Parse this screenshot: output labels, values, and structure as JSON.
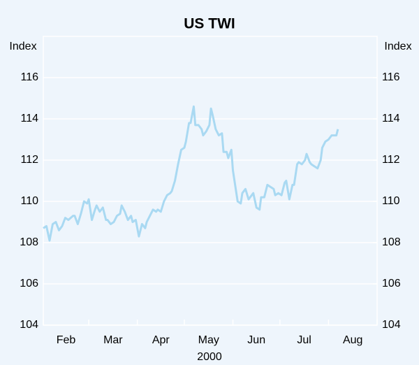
{
  "chart_data": {
    "type": "line",
    "title": "US TWI",
    "y_label": "Index",
    "y2_label": "Index",
    "x_label": "2000",
    "categories": [
      "Feb",
      "Mar",
      "Apr",
      "May",
      "Jun",
      "Jul",
      "Aug"
    ],
    "xlim": [
      0,
      213
    ],
    "xticks": [
      0,
      29,
      60,
      90,
      121,
      151,
      182,
      213
    ],
    "ylim": [
      104,
      118
    ],
    "yticks": [
      104,
      106,
      108,
      110,
      112,
      114,
      116
    ],
    "y2lim": [
      104,
      118
    ],
    "y2ticks": [
      104,
      106,
      108,
      110,
      112,
      114,
      116
    ],
    "grid": true,
    "series": [
      {
        "name": "US TWI",
        "color": "#a9d9f2",
        "x": [
          0,
          2,
          4,
          6,
          8,
          10,
          12,
          14,
          16,
          19,
          20,
          22,
          24,
          26,
          28,
          29,
          31,
          33,
          34,
          36,
          38,
          40,
          41,
          43,
          45,
          47,
          49,
          50,
          52,
          54,
          56,
          57,
          59,
          61,
          63,
          65,
          66,
          68,
          70,
          72,
          73,
          75,
          77,
          79,
          81,
          82,
          84,
          86,
          88,
          90,
          91,
          93,
          94,
          96,
          97,
          99,
          101,
          102,
          104,
          106,
          107,
          108,
          110,
          112,
          114,
          115,
          117,
          118,
          120,
          121,
          122,
          124,
          126,
          127,
          129,
          131,
          132,
          134,
          136,
          138,
          139,
          141,
          143,
          145,
          147,
          148,
          150,
          152,
          154,
          155,
          157,
          159,
          160,
          162,
          163,
          165,
          167,
          168,
          170,
          171,
          173,
          175,
          177,
          178,
          180,
          182,
          184,
          185,
          187,
          188
        ],
        "values": [
          108.7,
          108.8,
          108.1,
          108.9,
          109.0,
          108.6,
          108.8,
          109.2,
          109.1,
          109.3,
          109.3,
          108.9,
          109.4,
          110.0,
          109.9,
          110.1,
          109.1,
          109.6,
          109.8,
          109.5,
          109.7,
          109.1,
          109.1,
          108.9,
          109.0,
          109.3,
          109.4,
          109.8,
          109.5,
          109.1,
          109.3,
          109.0,
          109.1,
          108.3,
          108.9,
          108.7,
          109.0,
          109.3,
          109.6,
          109.5,
          109.6,
          109.5,
          110.0,
          110.3,
          110.4,
          110.5,
          111.0,
          111.8,
          112.5,
          112.6,
          112.9,
          113.8,
          113.8,
          114.6,
          113.7,
          113.7,
          113.5,
          113.2,
          113.4,
          113.7,
          114.5,
          114.2,
          113.5,
          113.2,
          113.3,
          112.4,
          112.4,
          112.1,
          112.5,
          111.5,
          111.0,
          110.0,
          109.9,
          110.4,
          110.6,
          110.1,
          110.2,
          110.4,
          109.7,
          109.6,
          110.2,
          110.2,
          110.8,
          110.7,
          110.6,
          110.3,
          110.4,
          110.3,
          110.9,
          111.0,
          110.1,
          110.8,
          110.8,
          111.8,
          111.9,
          111.8,
          112.0,
          112.3,
          111.9,
          111.8,
          111.7,
          111.6,
          112.0,
          112.6,
          112.9,
          113.0,
          113.2,
          113.2,
          113.2,
          113.5
        ]
      }
    ]
  }
}
